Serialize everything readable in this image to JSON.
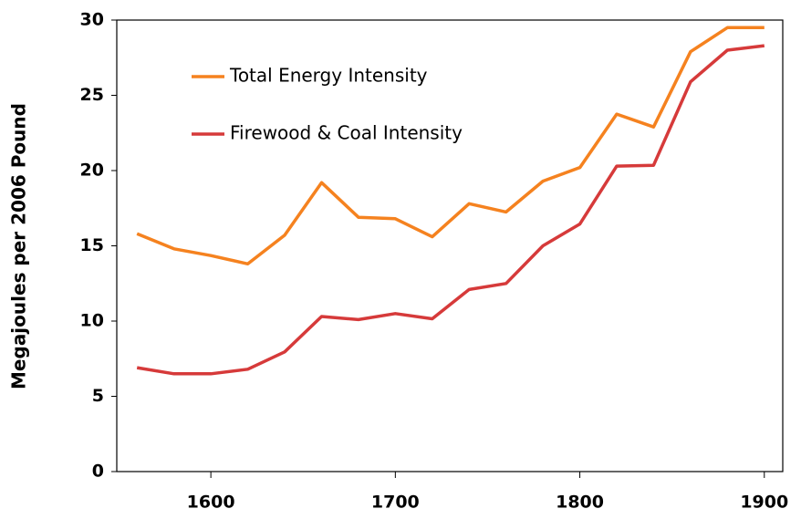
{
  "chart_data": {
    "type": "line",
    "ylabel": "Megajoules per 2006 Pound",
    "x": [
      1560,
      1580,
      1600,
      1620,
      1640,
      1660,
      1680,
      1700,
      1720,
      1740,
      1760,
      1780,
      1800,
      1820,
      1840,
      1860,
      1880,
      1900
    ],
    "series": [
      {
        "name": "Total Energy Intensity",
        "color": "#f5821f",
        "values": [
          15.8,
          14.8,
          14.35,
          13.8,
          15.7,
          19.2,
          16.9,
          16.8,
          15.6,
          17.8,
          17.25,
          19.3,
          20.2,
          23.75,
          22.9,
          27.9,
          29.5,
          29.5
        ]
      },
      {
        "name": "Firewood & Coal Intensity",
        "color": "#d63a3a",
        "values": [
          6.9,
          6.5,
          6.5,
          6.8,
          7.95,
          10.3,
          10.1,
          10.5,
          10.15,
          12.1,
          12.5,
          15.0,
          16.45,
          20.3,
          20.35,
          25.9,
          28.0,
          28.3
        ]
      }
    ],
    "xlim": [
      1549,
      1910
    ],
    "xticks": [
      1600,
      1700,
      1800,
      1900
    ],
    "ylim": [
      0,
      30
    ],
    "yticks": [
      0,
      5,
      10,
      15,
      20,
      25,
      30
    ],
    "grid": false,
    "legend": "upper left"
  }
}
